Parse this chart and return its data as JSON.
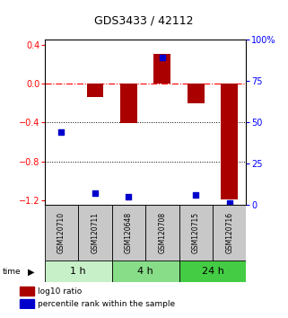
{
  "title": "GDS3433 / 42112",
  "samples": [
    "GSM120710",
    "GSM120711",
    "GSM120648",
    "GSM120708",
    "GSM120715",
    "GSM120716"
  ],
  "groups": [
    {
      "label": "1 h",
      "indices": [
        0,
        1
      ],
      "color": "#c8f0c8"
    },
    {
      "label": "4 h",
      "indices": [
        2,
        3
      ],
      "color": "#88dd88"
    },
    {
      "label": "24 h",
      "indices": [
        4,
        5
      ],
      "color": "#44cc44"
    }
  ],
  "log10_ratio": [
    0.0,
    -0.14,
    -0.41,
    0.3,
    -0.2,
    -1.19
  ],
  "percentile_rank": [
    44,
    7,
    5,
    89,
    6,
    1
  ],
  "ylim_left": [
    -1.25,
    0.45
  ],
  "ylim_right": [
    0,
    100
  ],
  "yticks_left": [
    0.4,
    0.0,
    -0.4,
    -0.8,
    -1.2
  ],
  "yticks_right": [
    100,
    75,
    50,
    25,
    0
  ],
  "bar_color": "#aa0000",
  "dot_color": "#0000cc",
  "plot_bg": "#ffffff",
  "legend_red": "log10 ratio",
  "legend_blue": "percentile rank within the sample",
  "sample_bg": "#c8c8c8",
  "bar_width": 0.5,
  "title_fontsize": 9,
  "tick_fontsize": 7,
  "sample_fontsize": 5.5,
  "time_fontsize": 8,
  "legend_fontsize": 6.5
}
